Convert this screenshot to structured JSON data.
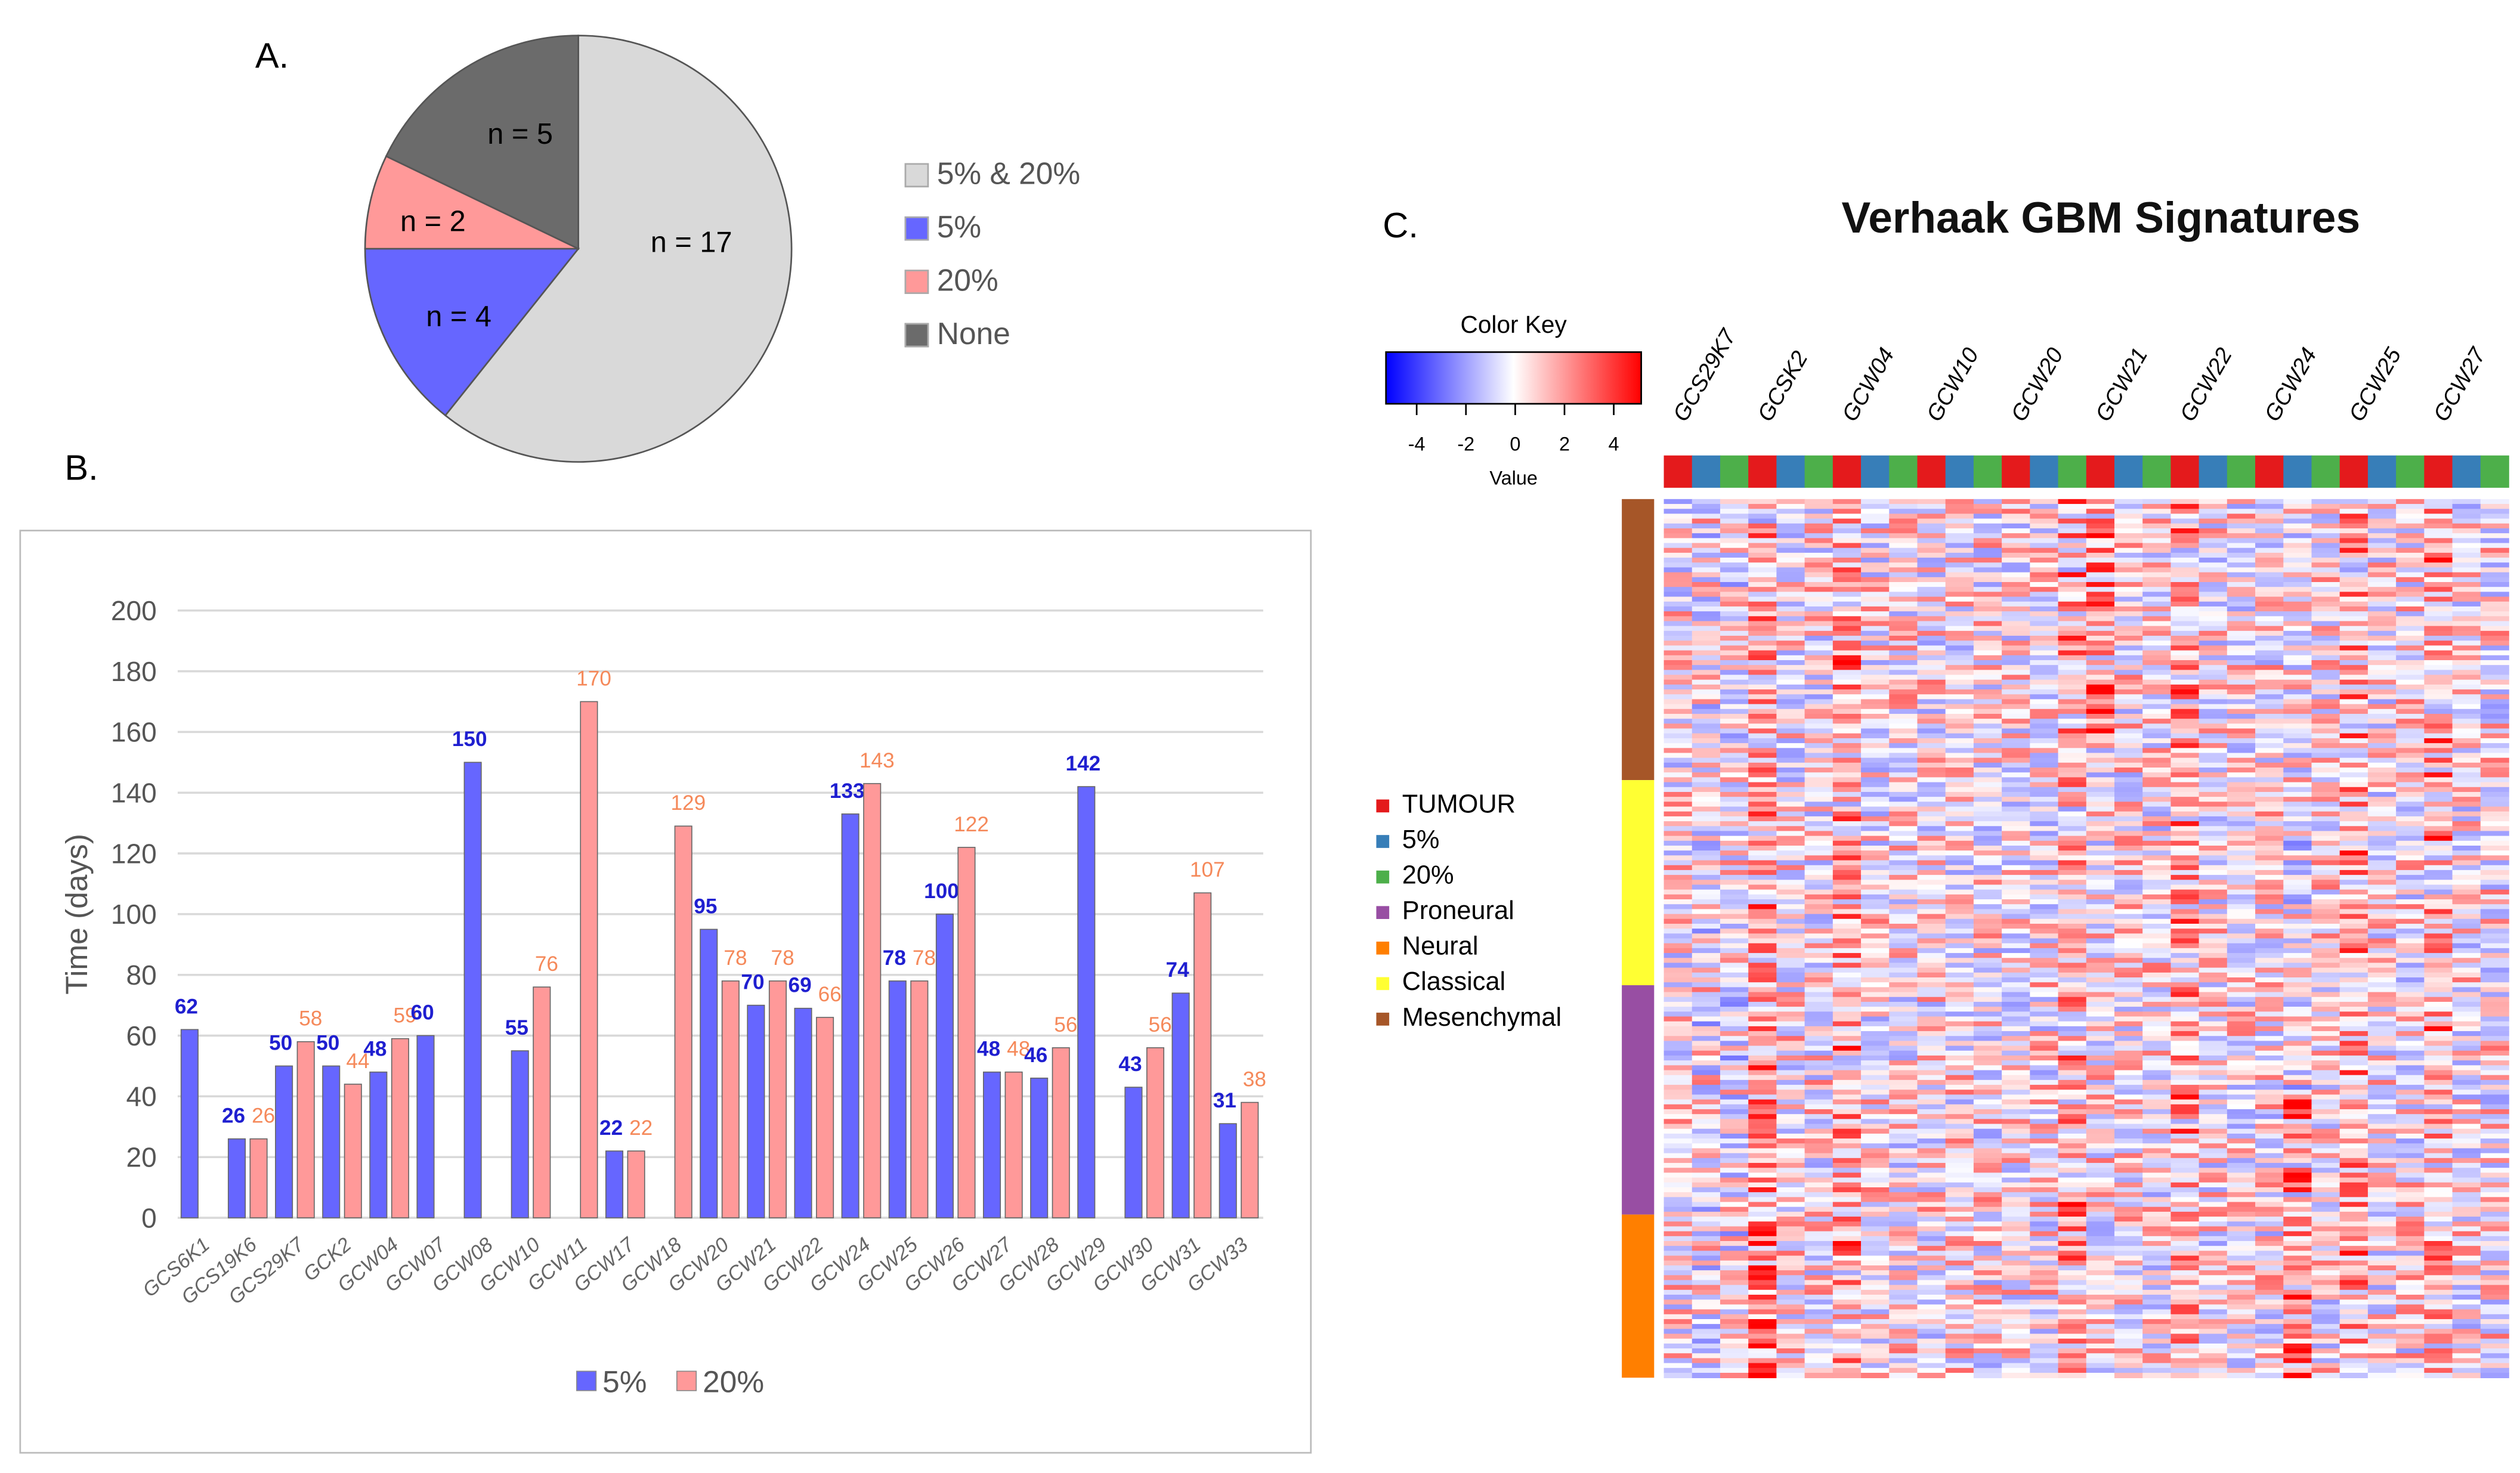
{
  "panels": {
    "a": "A.",
    "b": "B.",
    "c": "C."
  },
  "colors": {
    "blue5": "#6666ff",
    "pink20": "#ff9999",
    "blueLabel": "#1f1fd0",
    "orangeLabel": "#f5895a",
    "lightgray": "#d9d9d9",
    "darkgray": "#6b6b6b",
    "tumour": "#e41a1c",
    "p5": "#377eb8",
    "p20": "#4daf4a",
    "proneural": "#984ea3",
    "neural": "#ff7f00",
    "classical": "#ffff33",
    "mesenchymal": "#a65628"
  },
  "chart_data": [
    {
      "type": "pie",
      "slices": [
        {
          "name": "5% & 20%",
          "value": 17,
          "label": "n = 17",
          "color": "#d9d9d9"
        },
        {
          "name": "5%",
          "value": 4,
          "label": "n = 4",
          "color": "#6666ff"
        },
        {
          "name": "20%",
          "value": 2,
          "label": "n = 2",
          "color": "#ff9999"
        },
        {
          "name": "None",
          "value": 5,
          "label": "n = 5",
          "color": "#6b6b6b"
        }
      ],
      "legend": [
        "5% & 20%",
        "5%",
        "20%",
        "None"
      ],
      "legend_placement": "right"
    },
    {
      "type": "bar",
      "categories": [
        "GCS6K1",
        "GCS19K6",
        "GCS29K7",
        "GCK2",
        "GCW04",
        "GCW07",
        "GCW08",
        "GCW10",
        "GCW11",
        "GCW17",
        "GCW18",
        "GCW20",
        "GCW21",
        "GCW22",
        "GCW24",
        "GCW25",
        "GCW26",
        "GCW27",
        "GCW28",
        "GCW29",
        "GCW30",
        "GCW31",
        "GCW33"
      ],
      "series": [
        {
          "name": "5%",
          "values": [
            62,
            26,
            50,
            50,
            48,
            60,
            150,
            55,
            null,
            22,
            null,
            95,
            70,
            69,
            133,
            78,
            100,
            48,
            46,
            142,
            43,
            74,
            31
          ]
        },
        {
          "name": "20%",
          "values": [
            null,
            26,
            58,
            44,
            59,
            null,
            null,
            76,
            170,
            22,
            129,
            78,
            78,
            66,
            143,
            78,
            122,
            48,
            56,
            null,
            56,
            107,
            38
          ]
        }
      ],
      "ylabel": "Time (days)",
      "ylim": [
        0,
        200
      ],
      "yticks": [
        0,
        20,
        40,
        60,
        80,
        100,
        120,
        140,
        160,
        180,
        200
      ],
      "grid": true,
      "legend": [
        "5%",
        "20%"
      ],
      "legend_placement": "bottom"
    },
    {
      "type": "heatmap",
      "title": "Verhaak GBM Signatures",
      "columns": [
        "GCS29K7",
        "GCSK2",
        "GCW04",
        "GCW10",
        "GCW20",
        "GCW21",
        "GCW22",
        "GCW24",
        "GCW25",
        "GCW27"
      ],
      "column_annotation": [
        "TUMOUR",
        "5%",
        "20%"
      ],
      "row_groups": [
        "Mesenchymal",
        "Classical",
        "Proneural",
        "Neural"
      ],
      "color_key": {
        "title": "Color Key",
        "xlabel": "Value",
        "ticks": [
          "-4",
          "-2",
          "0",
          "2",
          "4"
        ],
        "range": [
          -5,
          5
        ]
      },
      "legend": [
        {
          "label": "TUMOUR",
          "color": "#e41a1c"
        },
        {
          "label": "5%",
          "color": "#377eb8"
        },
        {
          "label": "20%",
          "color": "#4daf4a"
        },
        {
          "label": "Proneural",
          "color": "#984ea3"
        },
        {
          "label": "Neural",
          "color": "#ff7f00"
        },
        {
          "label": "Classical",
          "color": "#ffff33"
        },
        {
          "label": "Mesenchymal",
          "color": "#a65628"
        }
      ]
    }
  ]
}
